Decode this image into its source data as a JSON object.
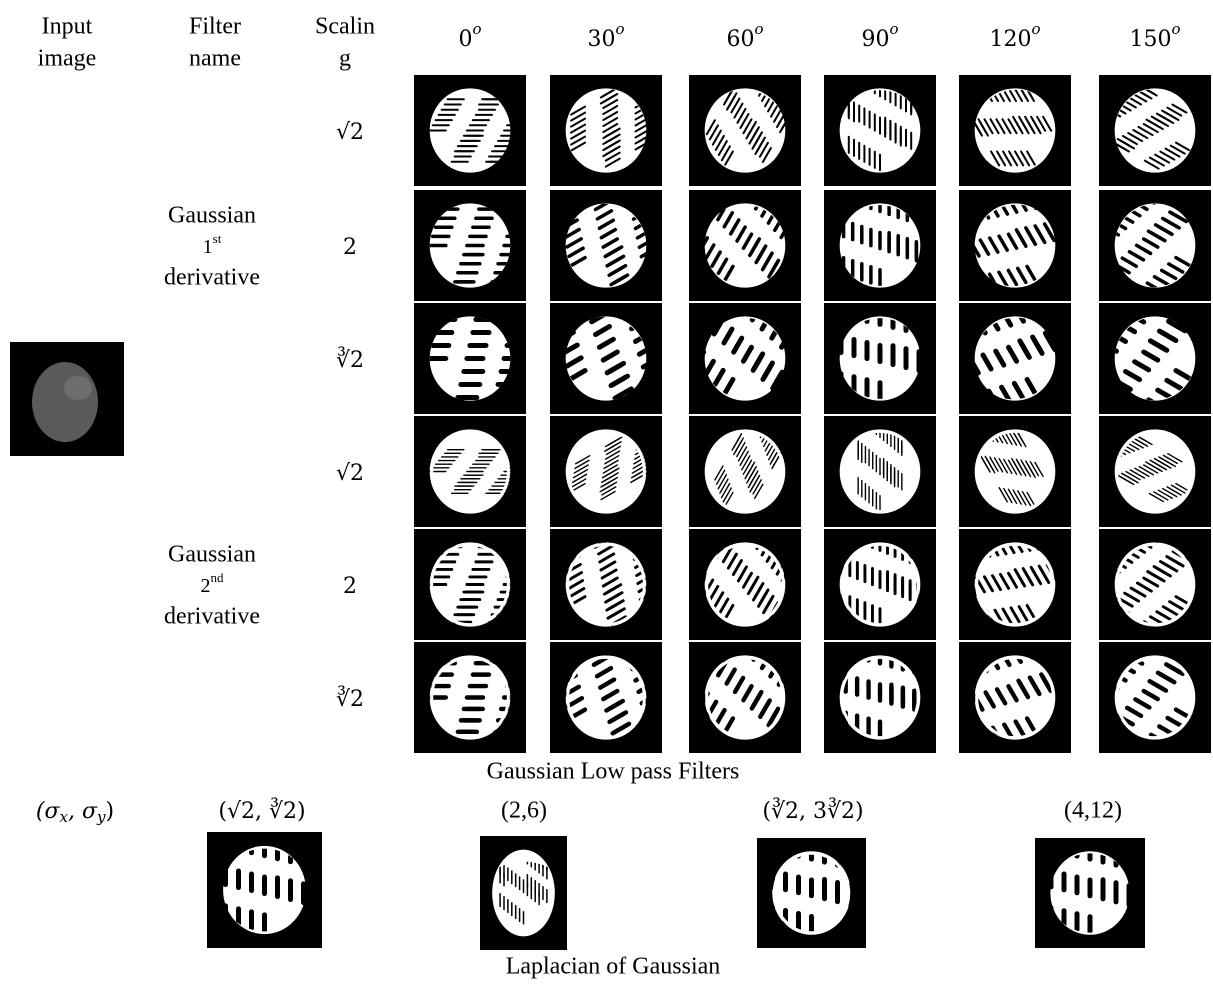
{
  "header": {
    "input": [
      "Input",
      "image"
    ],
    "filter": [
      "Filter",
      "name"
    ],
    "scaling": [
      "Scalin",
      "g"
    ],
    "angles": [
      "0",
      "30",
      "60",
      "90",
      "120",
      "150"
    ],
    "degree_mark": "o"
  },
  "rows": [
    {
      "filter": {
        "line1": "Gaussian",
        "ordinal": "1",
        "suffix": "st",
        "line2": "derivative"
      },
      "scalings": [
        "√2",
        "2",
        "∛2"
      ]
    },
    {
      "filter": {
        "line1": "Gaussian",
        "ordinal": "2",
        "suffix": "nd",
        "line2": "derivative"
      },
      "scalings": [
        "√2",
        "2",
        "∛2"
      ]
    }
  ],
  "low_pass_caption": "Gaussian Low pass Filters",
  "sigma_label": {
    "open": "(σ",
    "sub1": "x",
    "mid": ", σ",
    "sub2": "y",
    "close": ")"
  },
  "params": [
    "(√2, ∛2)",
    "(2,6)",
    "(∛2, 3∛2)",
    "(4,12)"
  ],
  "log_caption": "Laplacian of Gaussian"
}
